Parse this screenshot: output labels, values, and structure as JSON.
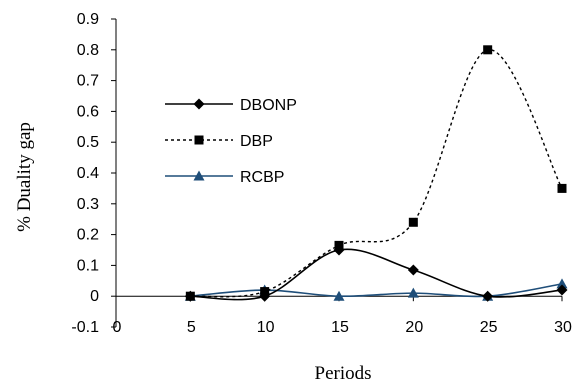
{
  "chart_data": {
    "type": "line",
    "title": "",
    "xlabel": "Periods",
    "ylabel": "% Duality gap",
    "x": [
      5,
      10,
      15,
      20,
      25,
      30
    ],
    "xlim": [
      0,
      30
    ],
    "ylim": [
      -0.1,
      0.9
    ],
    "x_ticks": [
      "0",
      "5",
      "10",
      "15",
      "20",
      "25",
      "30"
    ],
    "y_ticks": [
      "-0.1",
      "0",
      "0.1",
      "0.2",
      "0.3",
      "0.4",
      "0.5",
      "0.6",
      "0.7",
      "0.8",
      "0.9"
    ],
    "grid": false,
    "legend_position": "left",
    "series": [
      {
        "name": "DBONP",
        "values": [
          0.0,
          0.0,
          0.15,
          0.085,
          0.0,
          0.02
        ],
        "color": "#000000",
        "marker": "diamond",
        "dash": "solid"
      },
      {
        "name": "DBP",
        "values": [
          0.0,
          0.015,
          0.165,
          0.24,
          0.8,
          0.35
        ],
        "color": "#000000",
        "marker": "square",
        "dash": "dotted"
      },
      {
        "name": "RCBP",
        "values": [
          0.0,
          0.02,
          0.0,
          0.01,
          0.0,
          0.04
        ],
        "color": "#1f4e79",
        "marker": "triangle",
        "dash": "solid"
      }
    ]
  }
}
